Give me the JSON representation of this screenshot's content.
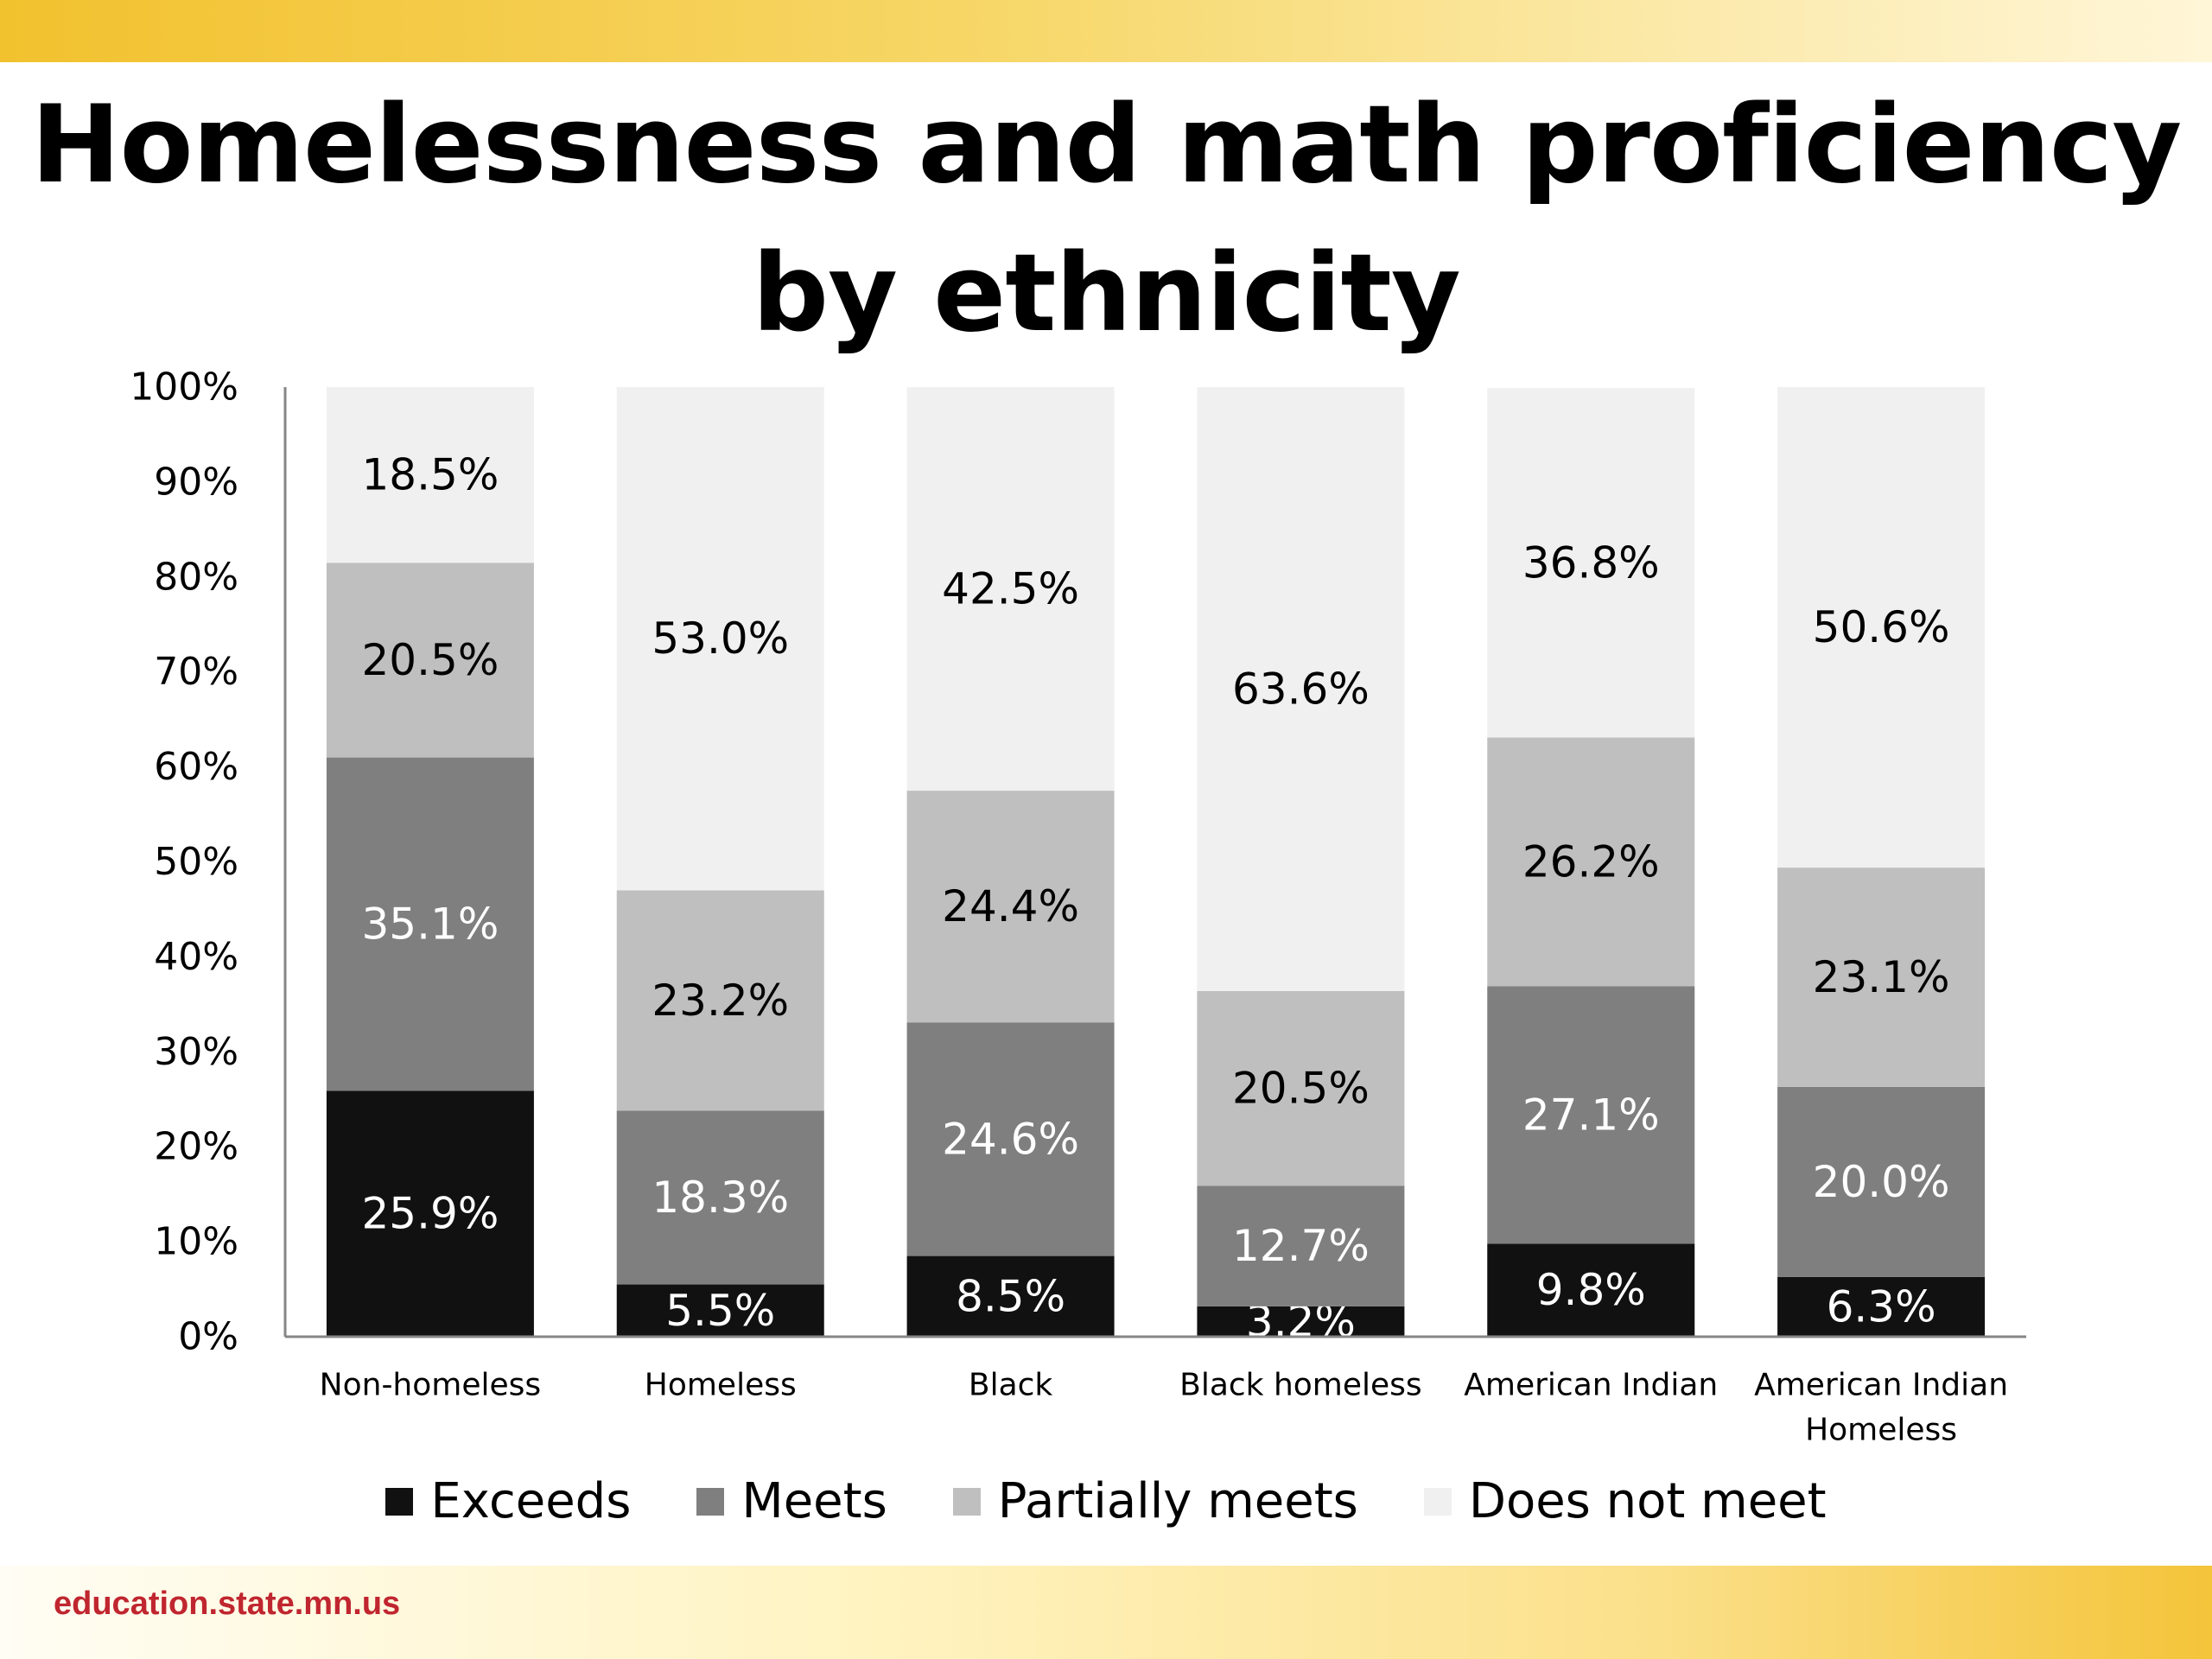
{
  "slide": {
    "footer": "education.state.mn.us"
  },
  "chart_data": {
    "type": "bar",
    "stacked": true,
    "title": [
      "Homelessness and math proficiency",
      "by ethnicity"
    ],
    "categories": [
      "Non-homeless",
      "Homeless",
      "Black",
      "Black homeless",
      "American Indian",
      "American Indian Homeless"
    ],
    "category_label_lines": [
      [
        "Non-homeless"
      ],
      [
        "Homeless"
      ],
      [
        "Black"
      ],
      [
        "Black homeless"
      ],
      [
        "American Indian"
      ],
      [
        "American Indian",
        "Homeless"
      ]
    ],
    "series": [
      {
        "name": "Exceeds",
        "color": "#111111",
        "label_color": "#ffffff",
        "values": [
          25.9,
          5.5,
          8.5,
          3.2,
          9.8,
          6.3
        ],
        "labels": [
          "25.9%",
          "5.5%",
          "8.5%",
          "3.2%",
          "9.8%",
          "6.3%"
        ]
      },
      {
        "name": "Meets",
        "color": "#7f7f7f",
        "label_color": "#ffffff",
        "values": [
          35.1,
          18.3,
          24.6,
          12.7,
          27.1,
          20.0
        ],
        "labels": [
          "35.1%",
          "18.3%",
          "24.6%",
          "12.7%",
          "27.1%",
          "20.0%"
        ]
      },
      {
        "name": "Partially meets",
        "color": "#bfbfbf",
        "label_color": "#000000",
        "values": [
          20.5,
          23.2,
          24.4,
          20.5,
          26.2,
          23.1
        ],
        "labels": [
          "20.5%",
          "23.2%",
          "24.4%",
          "20.5%",
          "26.2%",
          "23.1%"
        ]
      },
      {
        "name": "Does not meet",
        "color": "#f0f0f0",
        "label_color": "#000000",
        "values": [
          18.5,
          53.0,
          42.5,
          63.6,
          36.8,
          50.6
        ],
        "labels": [
          "18.5%",
          "53.0%",
          "42.5%",
          "63.6%",
          "36.8%",
          "50.6%"
        ]
      }
    ],
    "y_ticks": [
      "0%",
      "10%",
      "20%",
      "30%",
      "40%",
      "50%",
      "60%",
      "70%",
      "80%",
      "90%",
      "100%"
    ],
    "ylim": [
      0,
      100
    ],
    "xlabel": "",
    "ylabel": "",
    "legend_position": "bottom",
    "grid": false
  }
}
